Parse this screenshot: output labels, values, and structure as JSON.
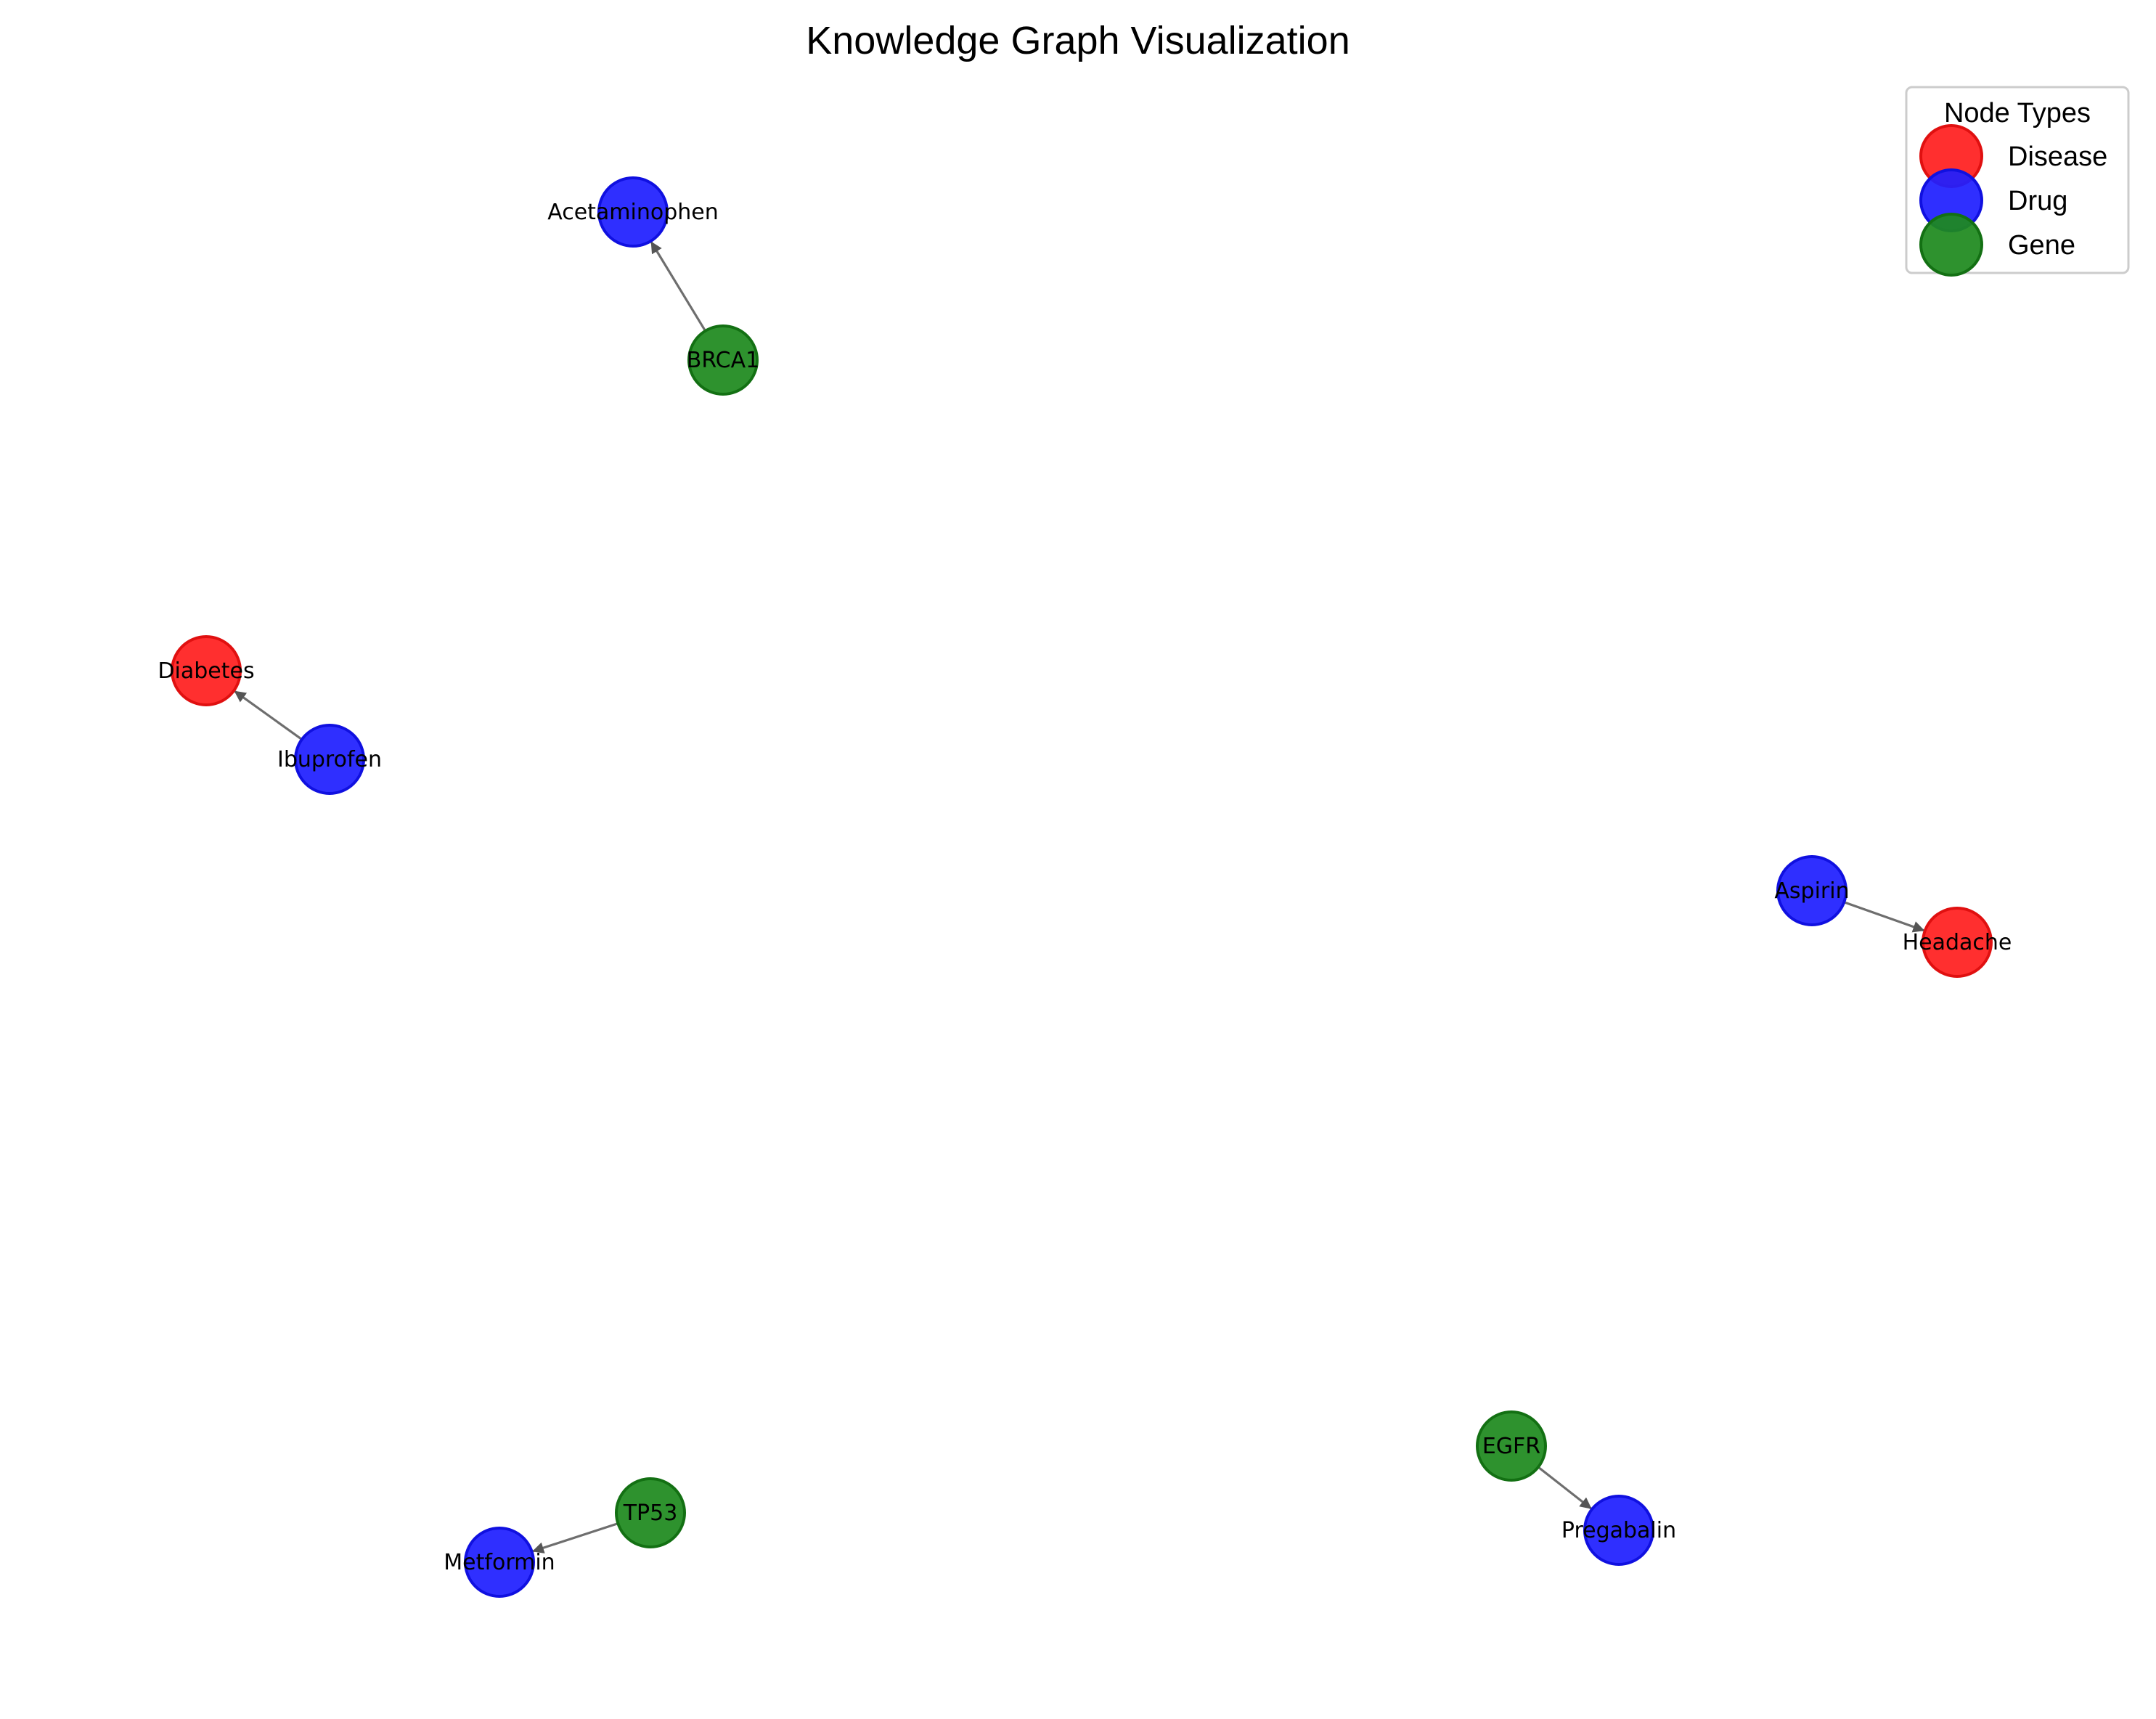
{
  "title": "Knowledge Graph Visualization",
  "legend": {
    "title": "Node Types",
    "items": [
      {
        "type": "disease",
        "label": "Disease"
      },
      {
        "type": "drug",
        "label": "Drug"
      },
      {
        "type": "gene",
        "label": "Gene"
      }
    ]
  },
  "colors": {
    "disease": {
      "fill": "#ff1f1f",
      "stroke": "#e01010"
    },
    "drug": {
      "fill": "#1f1fff",
      "stroke": "#1010e0"
    },
    "gene": {
      "fill": "#1e8a1e",
      "stroke": "#137013"
    },
    "edge": "#555555"
  },
  "nodes": [
    {
      "id": "acetaminophen",
      "label": "Acetaminophen",
      "type": "drug"
    },
    {
      "id": "brca1",
      "label": "BRCA1",
      "type": "gene"
    },
    {
      "id": "diabetes",
      "label": "Diabetes",
      "type": "disease"
    },
    {
      "id": "ibuprofen",
      "label": "Ibuprofen",
      "type": "drug"
    },
    {
      "id": "aspirin",
      "label": "Aspirin",
      "type": "drug"
    },
    {
      "id": "headache",
      "label": "Headache",
      "type": "disease"
    },
    {
      "id": "egfr",
      "label": "EGFR",
      "type": "gene"
    },
    {
      "id": "pregabalin",
      "label": "Pregabalin",
      "type": "drug"
    },
    {
      "id": "tp53",
      "label": "TP53",
      "type": "gene"
    },
    {
      "id": "metformin",
      "label": "Metformin",
      "type": "drug"
    }
  ],
  "edges": [
    {
      "source": "brca1",
      "target": "acetaminophen"
    },
    {
      "source": "ibuprofen",
      "target": "diabetes"
    },
    {
      "source": "aspirin",
      "target": "headache"
    },
    {
      "source": "egfr",
      "target": "pregabalin"
    },
    {
      "source": "tp53",
      "target": "metformin"
    }
  ]
}
